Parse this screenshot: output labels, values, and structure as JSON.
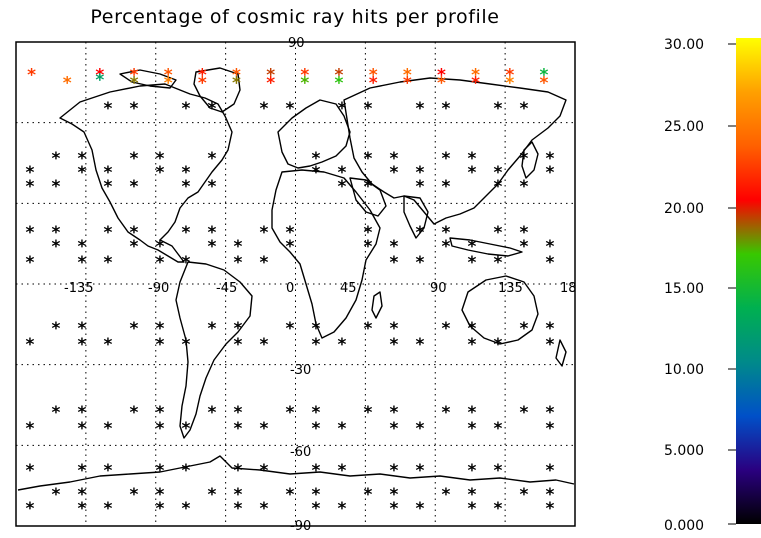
{
  "title": "Percentage of cosmic ray hits per profile",
  "map": {
    "projection": "cylindrical",
    "grid": "dotted",
    "lon_labels": [
      "-135",
      "-90",
      "-45",
      "0",
      "45",
      "90",
      "135",
      "18"
    ],
    "lat_labels": [
      "90",
      "-30",
      "-60",
      "-90"
    ],
    "marker": "*",
    "default_marker_color": "#000000"
  },
  "colorbar": {
    "min": 0,
    "max": 30,
    "tick_labels": [
      "0.000",
      "5.000",
      "10.00",
      "15.00",
      "20.00",
      "25.00",
      "30.00"
    ],
    "colors": [
      "#000000",
      "#2a0080",
      "#0050c8",
      "#008a8a",
      "#00b050",
      "#38c800",
      "#ff0000",
      "#ff6000",
      "#ffa000",
      "#ffff00"
    ]
  },
  "chart_data": {
    "type": "scatter",
    "title": "Percentage of cosmic ray hits per profile",
    "xlabel": "",
    "ylabel": "",
    "xlim": [
      -180,
      180
    ],
    "ylim": [
      -90,
      90
    ],
    "value_range": [
      0,
      30
    ],
    "series": [
      {
        "values": [
          {
            "lon": -170,
            "lat": 78,
            "value": 22
          },
          {
            "lon": -147,
            "lat": 75,
            "value": 24
          },
          {
            "lon": -126,
            "lat": 78,
            "value": 20
          },
          {
            "lon": -126,
            "lat": 76,
            "value": 12
          },
          {
            "lon": -104,
            "lat": 78,
            "value": 22
          },
          {
            "lon": -104,
            "lat": 75,
            "value": 18
          },
          {
            "lon": -82,
            "lat": 78,
            "value": 23
          },
          {
            "lon": -82,
            "lat": 75,
            "value": 25
          },
          {
            "lon": -60,
            "lat": 78,
            "value": 21
          },
          {
            "lon": -60,
            "lat": 75,
            "value": 22
          },
          {
            "lon": -38,
            "lat": 78,
            "value": 23
          },
          {
            "lon": -38,
            "lat": 75,
            "value": 18
          },
          {
            "lon": -16,
            "lat": 78,
            "value": 19
          },
          {
            "lon": -16,
            "lat": 75,
            "value": 21
          },
          {
            "lon": 6,
            "lat": 78,
            "value": 22
          },
          {
            "lon": 6,
            "lat": 75,
            "value": 17
          },
          {
            "lon": 28,
            "lat": 78,
            "value": 19
          },
          {
            "lon": 28,
            "lat": 75,
            "value": 16
          },
          {
            "lon": 50,
            "lat": 78,
            "value": 23
          },
          {
            "lon": 50,
            "lat": 75,
            "value": 21
          },
          {
            "lon": 72,
            "lat": 78,
            "value": 24
          },
          {
            "lon": 72,
            "lat": 75,
            "value": 22
          },
          {
            "lon": 94,
            "lat": 78,
            "value": 20
          },
          {
            "lon": 94,
            "lat": 75,
            "value": 23
          },
          {
            "lon": 116,
            "lat": 78,
            "value": 24
          },
          {
            "lon": 116,
            "lat": 75,
            "value": 21
          },
          {
            "lon": 138,
            "lat": 78,
            "value": 22
          },
          {
            "lon": 138,
            "lat": 75,
            "value": 25
          },
          {
            "lon": 160,
            "lat": 78,
            "value": 14
          },
          {
            "lon": 160,
            "lat": 75,
            "value": 23
          }
        ]
      }
    ]
  }
}
